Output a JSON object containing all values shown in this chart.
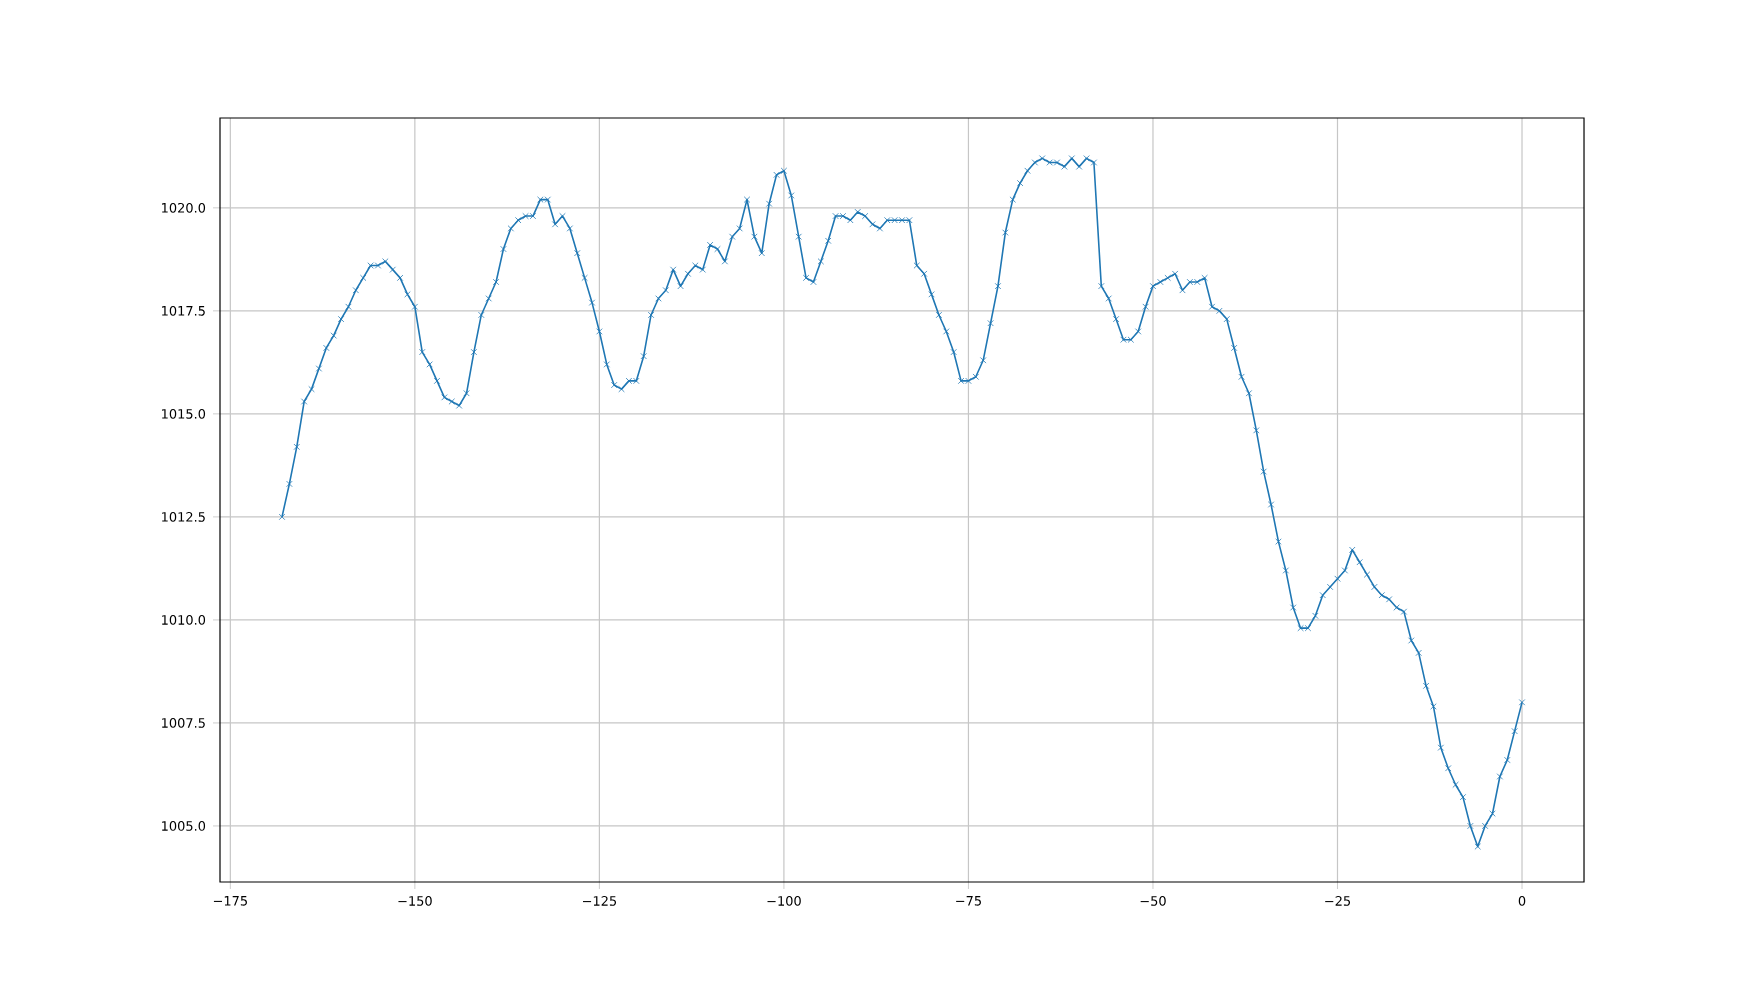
{
  "chart_data": {
    "type": "line",
    "marker": "cross",
    "line_style": "solid",
    "grid": true,
    "xlim": [
      -176.4,
      8.4
    ],
    "ylim": [
      1003.64,
      1022.18
    ],
    "xticks": [
      {
        "value": -175,
        "label": "−175"
      },
      {
        "value": -150,
        "label": "−150"
      },
      {
        "value": -125,
        "label": "−125"
      },
      {
        "value": -100,
        "label": "−100"
      },
      {
        "value": -75,
        "label": "−75"
      },
      {
        "value": -50,
        "label": "−50"
      },
      {
        "value": -25,
        "label": "−25"
      },
      0
    ],
    "yticks": [
      {
        "value": 1005,
        "label": "1005.0"
      },
      {
        "value": 1007.5,
        "label": "1007.5"
      },
      {
        "value": 1010,
        "label": "1010.0"
      },
      {
        "value": 1012.5,
        "label": "1012.5"
      },
      {
        "value": 1015,
        "label": "1015.0"
      },
      {
        "value": 1017.5,
        "label": "1017.5"
      },
      {
        "value": 1020,
        "label": "1020.0"
      }
    ],
    "x": [
      -168,
      -167,
      -166,
      -165,
      -164,
      -163,
      -162,
      -161,
      -160,
      -159,
      -158,
      -157,
      -156,
      -155,
      -154,
      -153,
      -152,
      -151,
      -150,
      -149,
      -148,
      -147,
      -146,
      -145,
      -144,
      -143,
      -142,
      -141,
      -140,
      -139,
      -138,
      -137,
      -136,
      -135,
      -134,
      -133,
      -132,
      -131,
      -130,
      -129,
      -128,
      -127,
      -126,
      -125,
      -124,
      -123,
      -122,
      -121,
      -120,
      -119,
      -118,
      -117,
      -116,
      -115,
      -114,
      -113,
      -112,
      -111,
      -110,
      -109,
      -108,
      -107,
      -106,
      -105,
      -104,
      -103,
      -102,
      -101,
      -100,
      -99,
      -98,
      -97,
      -96,
      -95,
      -94,
      -93,
      -92,
      -91,
      -90,
      -89,
      -88,
      -87,
      -86,
      -85,
      -84,
      -83,
      -82,
      -81,
      -80,
      -79,
      -78,
      -77,
      -76,
      -75,
      -74,
      -73,
      -72,
      -71,
      -70,
      -69,
      -68,
      -67,
      -66,
      -65,
      -64,
      -63,
      -62,
      -61,
      -60,
      -59,
      -58,
      -57,
      -56,
      -55,
      -54,
      -53,
      -52,
      -51,
      -50,
      -49,
      -48,
      -47,
      -46,
      -45,
      -44,
      -43,
      -42,
      -41,
      -40,
      -39,
      -38,
      -37,
      -36,
      -35,
      -34,
      -33,
      -32,
      -31,
      -30,
      -29,
      -28,
      -27,
      -26,
      -25,
      -24,
      -23,
      -22,
      -21,
      -20,
      -19,
      -18,
      -17,
      -16,
      -15,
      -14,
      -13,
      -12,
      -11,
      -10,
      -9,
      -8,
      -7,
      -6,
      -5,
      -4,
      -3,
      -2,
      -1,
      0
    ],
    "series": [
      {
        "color": "#1f77b4",
        "values": [
          1012.5,
          1013.3,
          1014.2,
          1015.3,
          1015.6,
          1016.1,
          1016.6,
          1016.9,
          1017.3,
          1017.6,
          1018.0,
          1018.3,
          1018.6,
          1018.6,
          1018.7,
          1018.5,
          1018.3,
          1017.9,
          1017.6,
          1016.5,
          1016.2,
          1015.8,
          1015.4,
          1015.3,
          1015.2,
          1015.5,
          1016.5,
          1017.4,
          1017.8,
          1018.2,
          1019.0,
          1019.5,
          1019.7,
          1019.8,
          1019.8,
          1020.2,
          1020.2,
          1019.6,
          1019.8,
          1019.5,
          1018.9,
          1018.3,
          1017.7,
          1017.0,
          1016.2,
          1015.7,
          1015.6,
          1015.8,
          1015.8,
          1016.4,
          1017.4,
          1017.8,
          1018.0,
          1018.5,
          1018.1,
          1018.4,
          1018.6,
          1018.5,
          1019.1,
          1019.0,
          1018.7,
          1019.3,
          1019.5,
          1020.2,
          1019.3,
          1018.9,
          1020.1,
          1020.8,
          1020.9,
          1020.3,
          1019.3,
          1018.3,
          1018.2,
          1018.7,
          1019.2,
          1019.8,
          1019.8,
          1019.7,
          1019.9,
          1019.8,
          1019.6,
          1019.5,
          1019.7,
          1019.7,
          1019.7,
          1019.7,
          1018.6,
          1018.4,
          1017.9,
          1017.4,
          1017.0,
          1016.5,
          1015.8,
          1015.8,
          1015.9,
          1016.3,
          1017.2,
          1018.1,
          1019.4,
          1020.2,
          1020.6,
          1020.9,
          1021.1,
          1021.2,
          1021.1,
          1021.1,
          1021.0,
          1021.2,
          1021.0,
          1021.2,
          1021.1,
          1018.1,
          1017.8,
          1017.3,
          1016.8,
          1016.8,
          1017.0,
          1017.6,
          1018.1,
          1018.2,
          1018.3,
          1018.4,
          1018.0,
          1018.2,
          1018.2,
          1018.3,
          1017.6,
          1017.5,
          1017.3,
          1016.6,
          1015.9,
          1015.5,
          1014.6,
          1013.6,
          1012.8,
          1011.9,
          1011.2,
          1010.3,
          1009.8,
          1009.8,
          1010.1,
          1010.6,
          1010.8,
          1011.0,
          1011.2,
          1011.7,
          1011.4,
          1011.1,
          1010.8,
          1010.6,
          1010.5,
          1010.3,
          1010.2,
          1009.5,
          1009.2,
          1008.4,
          1007.9,
          1006.9,
          1006.4,
          1006.0,
          1005.7,
          1005.0,
          1004.5,
          1005.0,
          1005.3,
          1006.2,
          1006.6,
          1007.3,
          1008.0
        ]
      }
    ]
  }
}
